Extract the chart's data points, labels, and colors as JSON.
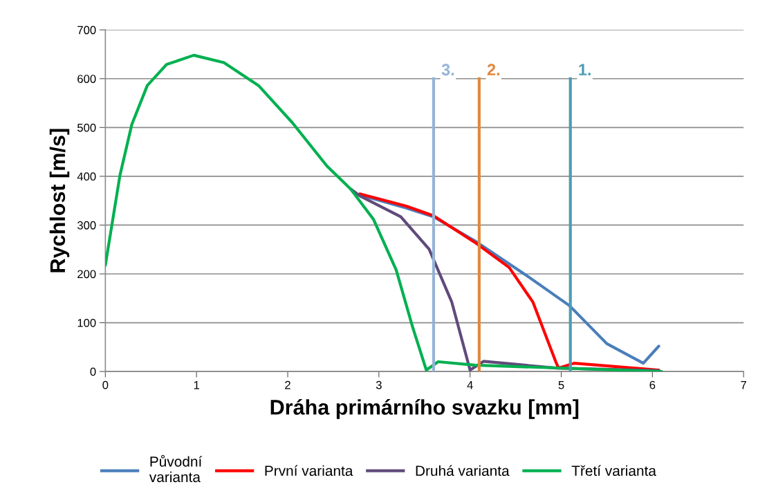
{
  "chart_data": {
    "type": "line",
    "xlabel": "Dráha primárního svazku [mm]",
    "ylabel": "Rychlost [m/s]",
    "xlim": [
      0,
      7
    ],
    "xticks": [
      0,
      1,
      2,
      3,
      4,
      5,
      6,
      7
    ],
    "ylim": [
      0,
      700
    ],
    "yticks": [
      0,
      100,
      200,
      300,
      400,
      500,
      600,
      700
    ],
    "grid": "y",
    "legend": "bottom",
    "marker": "none",
    "line_style": "solid",
    "series": [
      {
        "name": "Původní\nvarianta",
        "color": "#4a7ebb",
        "x": [
          2.79,
          3.3,
          3.6,
          4.05,
          4.61,
          5.09,
          5.5,
          5.9,
          6.07
        ],
        "values": [
          362,
          335,
          317,
          268,
          198,
          135,
          57,
          17,
          52
        ]
      },
      {
        "name": "První varianta",
        "color": "#ff0000",
        "x": [
          2.79,
          3.3,
          3.6,
          4.05,
          4.43,
          4.69,
          4.94,
          4.97,
          5.14,
          6.07
        ],
        "values": [
          364,
          339,
          319,
          265,
          213,
          142,
          20,
          7,
          17,
          3
        ]
      },
      {
        "name": "Druhá varianta",
        "color": "#604a7b",
        "x": [
          2.69,
          2.79,
          3.24,
          3.55,
          3.8,
          4.0,
          4.15,
          4.94,
          6.07
        ],
        "values": [
          374,
          360,
          317,
          251,
          142,
          3,
          21,
          7,
          2
        ]
      },
      {
        "name": "Třetí varianta",
        "color": "#00b050",
        "x": [
          0,
          0.16,
          0.29,
          0.46,
          0.67,
          0.97,
          1.3,
          1.68,
          2.05,
          2.43,
          2.69,
          2.94,
          3.19,
          3.37,
          3.52,
          3.65,
          4.05,
          6.1
        ],
        "values": [
          218,
          402,
          506,
          586,
          629,
          648,
          633,
          586,
          510,
          421,
          374,
          312,
          208,
          91,
          3,
          20,
          13,
          0
        ]
      }
    ],
    "ref_lines": [
      {
        "axis": "x",
        "value": 3.6,
        "color": "#95b3d7"
      },
      {
        "axis": "x",
        "value": 4.1,
        "color": "#e0883e"
      },
      {
        "axis": "x",
        "value": 5.1,
        "color": "#4b9cb3"
      }
    ],
    "annotations": [
      {
        "text": "3.",
        "x": 3.6,
        "y": 600
      },
      {
        "text": "2.",
        "x": 4.1,
        "y": 600
      },
      {
        "text": "1.",
        "x": 5.1,
        "y": 600
      }
    ]
  }
}
